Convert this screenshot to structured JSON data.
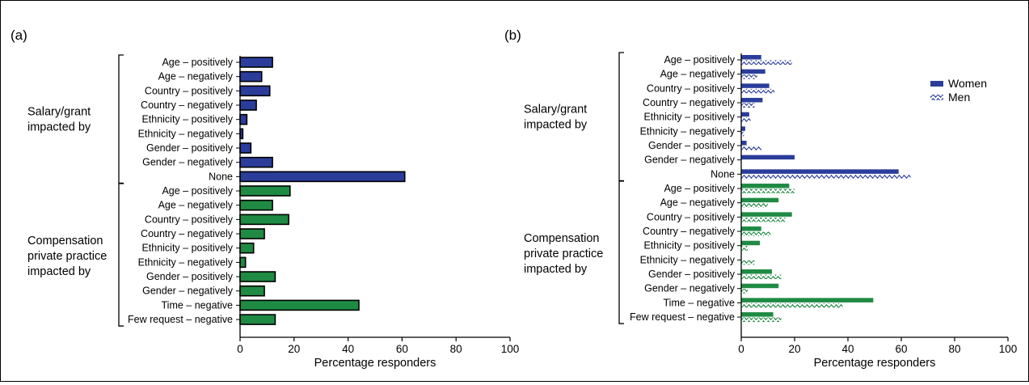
{
  "colors": {
    "salary": "#2b3d9b",
    "compensation": "#1f8a43",
    "axis": "#000000"
  },
  "chart_data": [
    {
      "panel_label": "(a)",
      "type": "bar",
      "orientation": "horizontal",
      "xlabel": "Percentage responders",
      "xlim": [
        0,
        100
      ],
      "xticks": [
        "0",
        "20",
        "40",
        "60",
        "80",
        "100"
      ],
      "groups": [
        {
          "label_lines": [
            "Salary/grant",
            "impacted by"
          ],
          "color": "#2b3d9b",
          "categories": [
            "Age – positively",
            "Age – negatively",
            "Country – positively",
            "Country – negatively",
            "Ethnicity – positively",
            "Ethnicity – negatively",
            "Gender – positively",
            "Gender – negatively",
            "None"
          ],
          "values": [
            12,
            8,
            11,
            6,
            2.5,
            1,
            4,
            12,
            61
          ]
        },
        {
          "label_lines": [
            "Compensation",
            "private practice",
            "impacted by"
          ],
          "color": "#1f8a43",
          "categories": [
            "Age – positively",
            "Age – negatively",
            "Country – positively",
            "Country – negatively",
            "Ethnicity – positively",
            "Ethnicity – negatively",
            "Gender – positively",
            "Gender – negatively",
            "Time – negative",
            "Few request – negative"
          ],
          "values": [
            18.5,
            12,
            18,
            9,
            5,
            2,
            13,
            9,
            44,
            13
          ]
        }
      ]
    },
    {
      "panel_label": "(b)",
      "type": "bar",
      "orientation": "horizontal",
      "xlabel": "Percentage responders",
      "xlim": [
        0,
        100
      ],
      "xticks": [
        "0",
        "20",
        "40",
        "60",
        "80",
        "100"
      ],
      "legend": {
        "position": "top-right",
        "entries": [
          "Women",
          "Men"
        ]
      },
      "groups": [
        {
          "label_lines": [
            "Salary/grant",
            "impacted by"
          ],
          "color": "#2b3d9b",
          "categories": [
            "Age – positively",
            "Age – negatively",
            "Country – positively",
            "Country – negatively",
            "Ethnicity – positively",
            "Ethnicity – negatively",
            "Gender – positively",
            "Gender – negatively",
            "None"
          ],
          "series": [
            {
              "name": "Women",
              "values": [
                7.5,
                9,
                10.5,
                8,
                3,
                1.5,
                2,
                20,
                59
              ]
            },
            {
              "name": "Men",
              "values": [
                19,
                6,
                12.5,
                5,
                3.5,
                1,
                7.5,
                0,
                63.5
              ]
            }
          ]
        },
        {
          "label_lines": [
            "Compensation",
            "private practice",
            "impacted by"
          ],
          "color": "#1f8a43",
          "categories": [
            "Age – positively",
            "Age – negatively",
            "Country – positively",
            "Country – negatively",
            "Ethnicity – positively",
            "Ethnicity – negatively",
            "Gender – positively",
            "Gender – negatively",
            "Time – negative",
            "Few request – negative"
          ],
          "series": [
            {
              "name": "Women",
              "values": [
                18,
                14,
                19,
                7.5,
                7,
                0,
                11.5,
                14,
                49.5,
                12
              ]
            },
            {
              "name": "Men",
              "values": [
                20,
                10,
                16.5,
                11,
                2.5,
                5,
                15,
                2.5,
                38,
                15
              ]
            }
          ]
        }
      ]
    }
  ]
}
